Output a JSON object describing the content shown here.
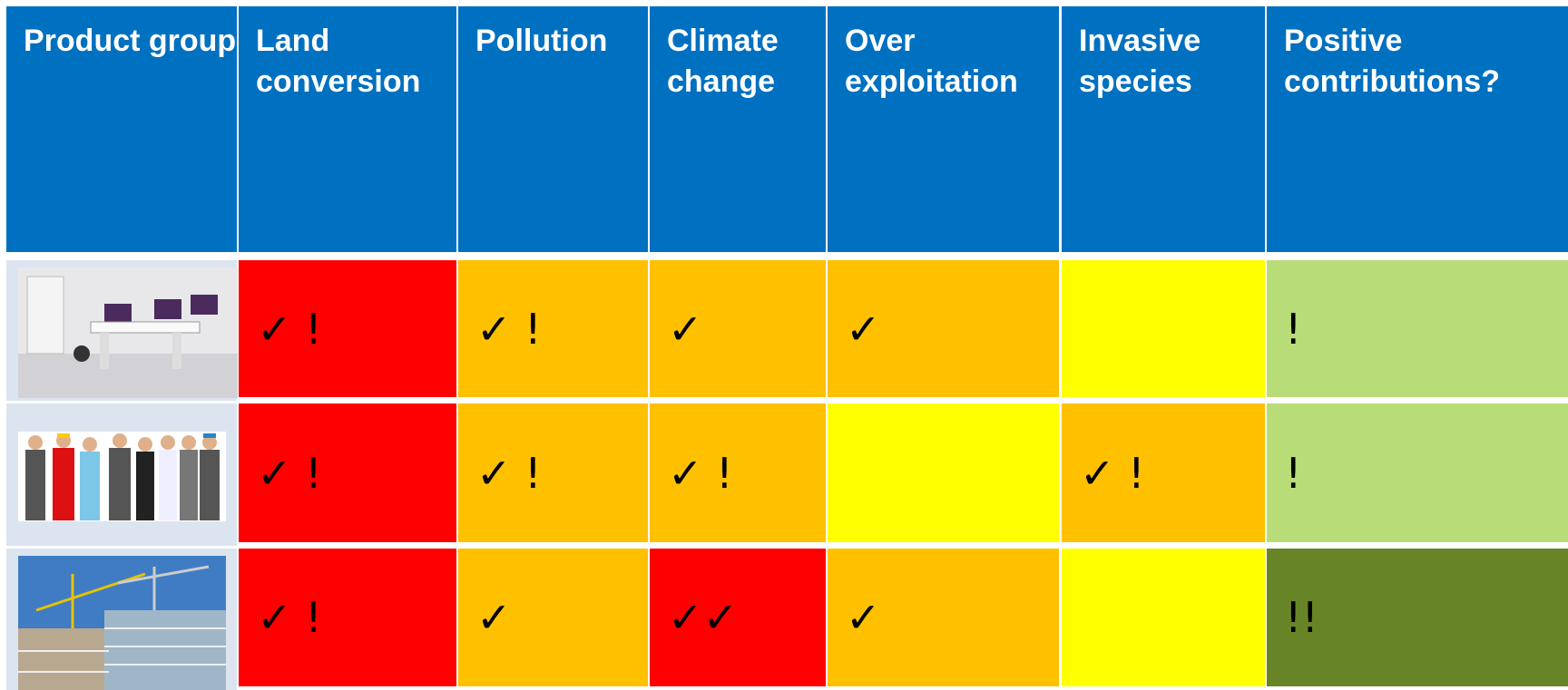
{
  "table": {
    "header_color": "#0070c0",
    "columns": [
      "Product group",
      "Land conversion",
      "Pollution",
      "Climate change",
      "Over exploitation",
      "Invasive species",
      "Positive contributions?"
    ],
    "rows": [
      {
        "cells": [
          {
            "text": "✓ !",
            "color": "#ff0000"
          },
          {
            "text": "✓ !",
            "color": "#ffc000"
          },
          {
            "text": "✓",
            "color": "#ffc000"
          },
          {
            "text": "✓",
            "color": "#ffc000"
          },
          {
            "color": "#ffff00"
          },
          {
            "text": "!",
            "color": "#b8dc78"
          }
        ]
      },
      {
        "cells": [
          {
            "text": "✓ !",
            "color": "#ff0000"
          },
          {
            "text": "✓ !",
            "color": "#ffc000"
          },
          {
            "text": "✓ !",
            "color": "#ffc000"
          },
          {
            "color": "#ffff00"
          },
          {
            "text": "✓ !",
            "color": "#ffc000"
          },
          {
            "text": "!",
            "color": "#b8dc78"
          }
        ]
      },
      {
        "cells": [
          {
            "text": "✓ !",
            "color": "#ff0000"
          },
          {
            "text": "✓",
            "color": "#ffc000"
          },
          {
            "text": "✓✓",
            "color": "#ff0000"
          },
          {
            "text": "✓",
            "color": "#ffc000"
          },
          {
            "color": "#ffff00"
          },
          {
            "text": "!!",
            "color": "#678526"
          }
        ]
      }
    ]
  }
}
